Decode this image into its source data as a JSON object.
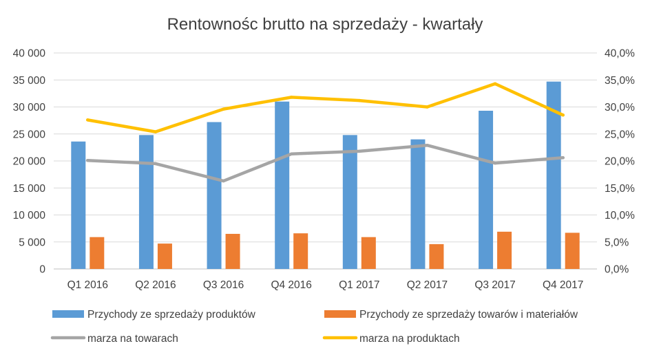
{
  "chart_data": {
    "type": "bar",
    "title": "Rentownośc brutto na sprzedaży - kwartały",
    "categories": [
      "Q1 2016",
      "Q2 2016",
      "Q3 2016",
      "Q4 2016",
      "Q1 2017",
      "Q2 2017",
      "Q3 2017",
      "Q4 2017"
    ],
    "y_left": {
      "min": 0,
      "max": 40000,
      "ticks": [
        "0",
        "5 000",
        "10 000",
        "15 000",
        "20 000",
        "25 000",
        "30 000",
        "35 000",
        "40 000"
      ]
    },
    "y_right": {
      "min": 0,
      "max": 0.4,
      "ticks": [
        "0,0%",
        "5,0%",
        "10,0%",
        "15,0%",
        "20,0%",
        "25,0%",
        "30,0%",
        "35,0%",
        "40,0%"
      ]
    },
    "grid": true,
    "legend_position": "bottom",
    "series": [
      {
        "name": "Przychody ze sprzedaży produktów",
        "kind": "bar",
        "axis": "left",
        "color": "#5B9BD5",
        "values": [
          23600,
          24800,
          27200,
          31000,
          24800,
          24000,
          29300,
          34700
        ]
      },
      {
        "name": "Przychody ze sprzedaży towarów i materiałów",
        "kind": "bar",
        "axis": "left",
        "color": "#ED7D31",
        "values": [
          5900,
          4700,
          6500,
          6600,
          5900,
          4600,
          6900,
          6700
        ]
      },
      {
        "name": "marza na towarach",
        "kind": "line",
        "axis": "right",
        "color": "#A5A5A5",
        "values": [
          0.201,
          0.195,
          0.163,
          0.213,
          0.218,
          0.229,
          0.196,
          0.206
        ]
      },
      {
        "name": "marza na produktach",
        "kind": "line",
        "axis": "right",
        "color": "#FFC000",
        "values": [
          0.276,
          0.254,
          0.296,
          0.318,
          0.312,
          0.3,
          0.343,
          0.285
        ]
      }
    ]
  }
}
